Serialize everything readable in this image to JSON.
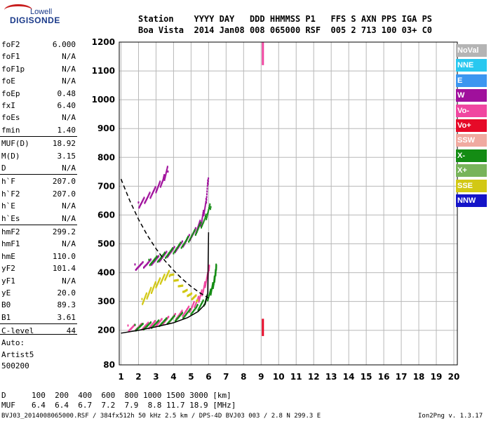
{
  "logo": {
    "line1": "Lowell",
    "line2": "DIGISONDE"
  },
  "header": {
    "labels": "Station    YYYY DAY   DDD HHMMSS P1   FFS S AXN PPS IGA PS",
    "values": "Boa Vista  2014 Jan08 008 065000 RSF  005 2 713 100 03+ C0"
  },
  "params": [
    {
      "k": "foF2",
      "v": "6.000"
    },
    {
      "k": "foF1",
      "v": "N/A"
    },
    {
      "k": "foF1p",
      "v": "N/A"
    },
    {
      "k": "foE",
      "v": "N/A"
    },
    {
      "k": "foEp",
      "v": "0.48"
    },
    {
      "k": "fxI",
      "v": "6.40"
    },
    {
      "k": "foEs",
      "v": "N/A"
    },
    {
      "k": "fmin",
      "v": "1.40"
    },
    {
      "k": "MUF(D)",
      "v": "18.92"
    },
    {
      "k": "M(D)",
      "v": "3.15"
    },
    {
      "k": "D",
      "v": "N/A"
    },
    {
      "k": "h`F",
      "v": "207.0"
    },
    {
      "k": "h`F2",
      "v": "207.0"
    },
    {
      "k": "h`E",
      "v": "N/A"
    },
    {
      "k": "h`Es",
      "v": "N/A"
    },
    {
      "k": "hmF2",
      "v": "299.2"
    },
    {
      "k": "hmF1",
      "v": "N/A"
    },
    {
      "k": "hmE",
      "v": "110.0"
    },
    {
      "k": "yF2",
      "v": "101.4"
    },
    {
      "k": "yF1",
      "v": "N/A"
    },
    {
      "k": "yE",
      "v": "20.0"
    },
    {
      "k": "B0",
      "v": "89.3"
    },
    {
      "k": "B1",
      "v": "3.61"
    },
    {
      "k": "C-level",
      "v": "44"
    }
  ],
  "auto": {
    "line1": "Auto:",
    "line2": "Artist5",
    "line3": "500200"
  },
  "legend": [
    {
      "label": "NoVal",
      "color": "#b4b4b4"
    },
    {
      "label": "NNE",
      "color": "#28c8f0"
    },
    {
      "label": "E",
      "color": "#3c96f0"
    },
    {
      "label": "W",
      "color": "#a0109c"
    },
    {
      "label": "Vo-",
      "color": "#f046a0"
    },
    {
      "label": "Vo+",
      "color": "#e60a28"
    },
    {
      "label": "SSW",
      "color": "#f0aaa0"
    },
    {
      "label": "X-",
      "color": "#148c14"
    },
    {
      "label": "X+",
      "color": "#78b45a"
    },
    {
      "label": "SSE",
      "color": "#d2c814"
    },
    {
      "label": "NNW",
      "color": "#1414c8"
    }
  ],
  "muf_table": {
    "d_label": "D",
    "d_values": "100  200  400  600  800 1000 1500 3000 [km]",
    "m_label": "MUF",
    "m_values": "6.4  6.4  6.7  7.2  7.9  8.8 11.7 18.9 [MHz]"
  },
  "footer": {
    "left": "BVJ03_2014008065000.RSF / 384fx512h 50 kHz 2.5 km / DPS-4D BVJ03 003 / 2.8 N 299.3 E",
    "right": "Ion2Png v. 1.3.17"
  },
  "chart_data": {
    "type": "scatter",
    "xlabel": "",
    "ylabel": "",
    "xlim": [
      0.9,
      20.2
    ],
    "ylim": [
      80,
      1200
    ],
    "x_ticks": [
      1,
      2,
      3,
      4,
      5,
      6,
      7,
      8,
      9,
      10,
      11,
      12,
      13,
      14,
      15,
      16,
      17,
      18,
      19,
      20
    ],
    "y_ticks": [
      80,
      200,
      300,
      400,
      500,
      600,
      700,
      800,
      900,
      1000,
      1100,
      1200
    ],
    "grid": true,
    "traces": [
      {
        "name": "F2 O-trace",
        "color": "#f046a0",
        "x": [
          1.4,
          2.0,
          2.6,
          3.2,
          3.8,
          4.4,
          5.0,
          5.4,
          5.7,
          5.95,
          6.05
        ],
        "y": [
          208,
          212,
          218,
          228,
          240,
          256,
          278,
          305,
          340,
          390,
          430
        ]
      },
      {
        "name": "F2 X-trace",
        "color": "#148c14",
        "x": [
          1.8,
          2.5,
          3.2,
          3.9,
          4.6,
          5.3,
          5.8,
          6.1,
          6.3,
          6.4,
          6.45
        ],
        "y": [
          210,
          216,
          226,
          238,
          254,
          276,
          300,
          330,
          365,
          400,
          430
        ]
      },
      {
        "name": "2nd hop",
        "color": "#a0109c",
        "x": [
          1.8,
          2.5,
          3.2,
          3.9,
          4.6,
          5.2,
          5.6,
          5.85,
          6.0
        ],
        "y": [
          420,
          432,
          450,
          474,
          504,
          540,
          580,
          640,
          740
        ]
      },
      {
        "name": "2nd hop X",
        "color": "#148c14",
        "x": [
          2.6,
          3.3,
          4.0,
          4.7,
          5.3,
          5.8,
          6.15
        ],
        "y": [
          436,
          454,
          478,
          508,
          545,
          585,
          640
        ]
      },
      {
        "name": "3rd hop",
        "color": "#a0109c",
        "x": [
          2.0,
          2.5,
          3.0,
          3.4,
          3.7
        ],
        "y": [
          635,
          660,
          690,
          720,
          765
        ]
      },
      {
        "name": "sporadic",
        "color": "#d2c814",
        "x": [
          2.2,
          2.6,
          3.0,
          3.4,
          3.8,
          4.2,
          4.6,
          5.0,
          5.4
        ],
        "y": [
          300,
          330,
          360,
          380,
          400,
          370,
          340,
          320,
          310
        ]
      }
    ],
    "profile_solid": {
      "x": [
        1.0,
        2.0,
        3.0,
        4.0,
        4.8,
        5.4,
        5.8,
        5.95,
        6.0
      ],
      "y": [
        190,
        200,
        212,
        226,
        244,
        265,
        290,
        330,
        540
      ]
    },
    "profile_dashed": {
      "x": [
        1.0,
        1.5,
        2.0,
        2.5,
        3.0,
        3.5,
        4.0,
        4.5,
        5.0,
        5.5,
        6.0
      ],
      "y": [
        725,
        650,
        585,
        530,
        483,
        442,
        408,
        378,
        352,
        330,
        312
      ]
    },
    "vertical_lines": [
      {
        "x": 9.1,
        "y0": 180,
        "y1": 240,
        "color": "#e60a28"
      },
      {
        "x": 9.1,
        "y0": 1120,
        "y1": 1200,
        "color": "#f046a0"
      }
    ]
  }
}
